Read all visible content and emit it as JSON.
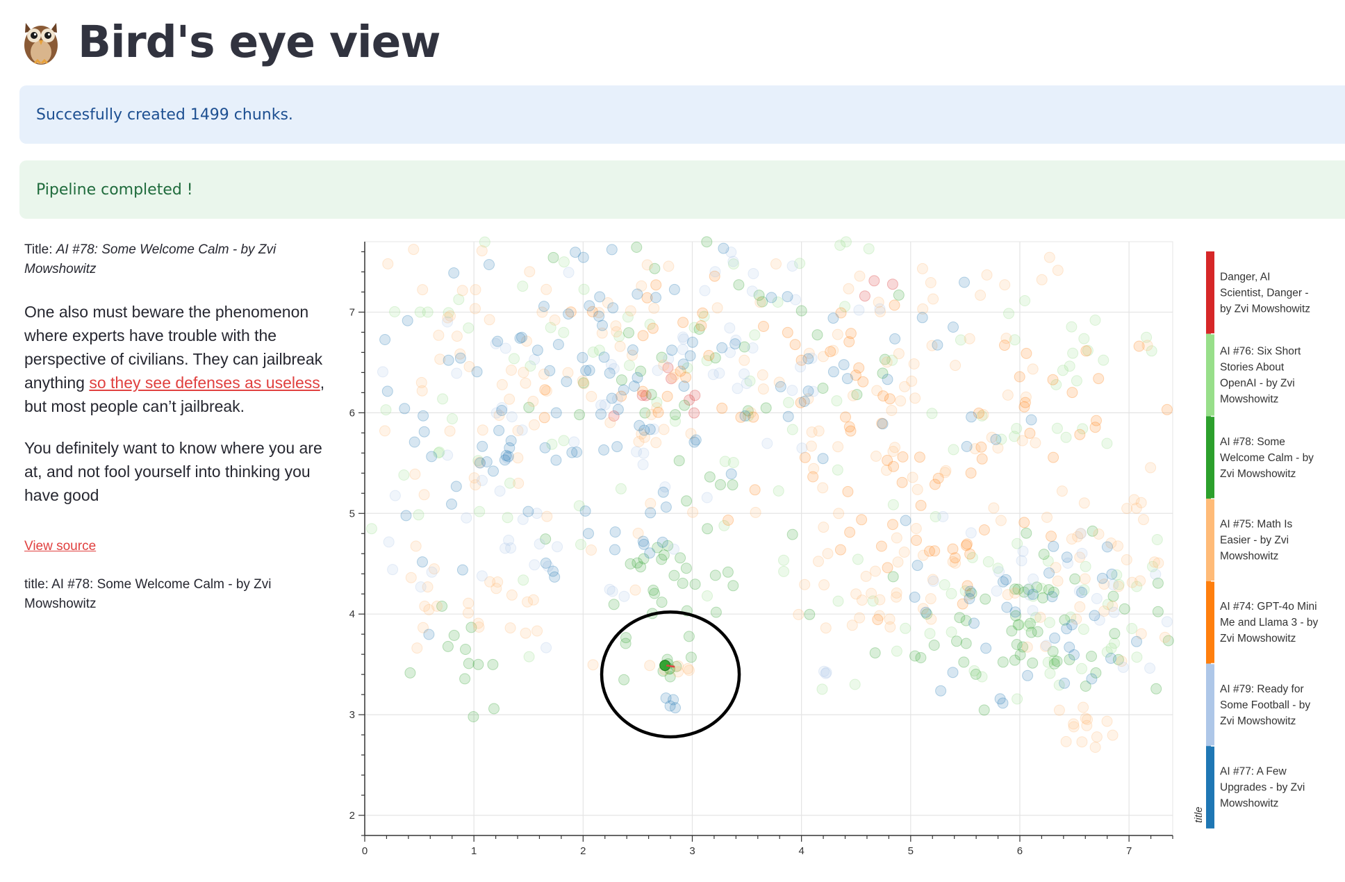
{
  "header": {
    "emoji_icon": "owl-icon",
    "title": "Bird's eye view"
  },
  "alerts": {
    "info": "Succesfully created 1499 chunks.",
    "success": "Pipeline completed !"
  },
  "selection": {
    "title_label": "Title:",
    "title_value": "AI #78: Some Welcome Calm - by Zvi Mowshowitz",
    "excerpt_p1_before": "One also must beware the phenomenon where experts have trouble with the perspective of civilians. They can jailbreak anything ",
    "excerpt_p1_link": "so they see defenses as useless",
    "excerpt_p1_after": ", but most people can’t jailbreak.",
    "excerpt_p2": "You definitely want to know where you are at, and not fool yourself into thinking you have good",
    "view_source": "View source",
    "meta_title": "title: AI #78: Some Welcome Calm - by Zvi Mowshowitz"
  },
  "chart_data": {
    "type": "scatter",
    "xlim": [
      0,
      7.4
    ],
    "ylim": [
      1.8,
      7.7
    ],
    "x_ticks": [
      "0",
      "1",
      "2",
      "3",
      "4",
      "5",
      "6",
      "7"
    ],
    "y_ticks": [
      "2",
      "3",
      "4",
      "5",
      "6",
      "7"
    ],
    "grid": true,
    "legend_title": "title",
    "legend_position": "right",
    "legend": [
      {
        "label": "Danger, AI Scientist, Danger - by Zvi Mowshowitz",
        "color": "#d62728"
      },
      {
        "label": "AI #76: Six Short Stories About OpenAI - by Zvi Mowshowitz",
        "color": "#98df8a"
      },
      {
        "label": "AI #78: Some Welcome Calm - by Zvi Mowshowitz",
        "color": "#2ca02c"
      },
      {
        "label": "AI #75: Math Is Easier - by Zvi Mowshowitz",
        "color": "#ffbb78"
      },
      {
        "label": "AI #74: GPT-4o Mini Me and Llama 3 - by Zvi Mowshowitz",
        "color": "#ff7f0e"
      },
      {
        "label": "AI #79: Ready for Some Football - by Zvi Mowshowitz",
        "color": "#aec7e8"
      },
      {
        "label": "AI #77: A Few Upgrades - by Zvi Mowshowitz",
        "color": "#1f77b4"
      }
    ],
    "highlighted_point": {
      "x": 2.75,
      "y": 3.49,
      "series": "AI #78: Some Welcome Calm - by Zvi Mowshowitz"
    },
    "annotation": {
      "type": "circle",
      "center": [
        2.8,
        3.4
      ],
      "rx": 0.63,
      "ry": 0.62
    },
    "clusters": [
      {
        "series": 0,
        "x": 2.9,
        "y": 6.1,
        "sx": 0.3,
        "sy": 0.25,
        "n": 8
      },
      {
        "series": 0,
        "x": 4.7,
        "y": 7.3,
        "sx": 0.15,
        "sy": 0.1,
        "n": 3
      },
      {
        "series": 1,
        "x": 2.0,
        "y": 6.2,
        "sx": 1.6,
        "sy": 1.0,
        "n": 80
      },
      {
        "series": 1,
        "x": 5.9,
        "y": 4.0,
        "sx": 0.9,
        "sy": 0.5,
        "n": 50
      },
      {
        "series": 1,
        "x": 6.5,
        "y": 6.5,
        "sx": 0.6,
        "sy": 0.6,
        "n": 25
      },
      {
        "series": 2,
        "x": 2.7,
        "y": 4.4,
        "sx": 0.3,
        "sy": 0.3,
        "n": 25
      },
      {
        "series": 2,
        "x": 6.1,
        "y": 3.9,
        "sx": 0.7,
        "sy": 0.4,
        "n": 60
      },
      {
        "series": 2,
        "x": 3.3,
        "y": 6.4,
        "sx": 0.9,
        "sy": 0.9,
        "n": 45
      },
      {
        "series": 2,
        "x": 0.9,
        "y": 3.5,
        "sx": 0.3,
        "sy": 0.3,
        "n": 12
      },
      {
        "series": 3,
        "x": 1.5,
        "y": 6.3,
        "sx": 1.1,
        "sy": 0.9,
        "n": 90
      },
      {
        "series": 3,
        "x": 5.0,
        "y": 6.0,
        "sx": 0.9,
        "sy": 1.0,
        "n": 90
      },
      {
        "series": 3,
        "x": 6.9,
        "y": 4.5,
        "sx": 0.5,
        "sy": 0.4,
        "n": 40
      },
      {
        "series": 3,
        "x": 0.9,
        "y": 4.0,
        "sx": 0.5,
        "sy": 0.3,
        "n": 25
      },
      {
        "series": 3,
        "x": 6.6,
        "y": 2.9,
        "sx": 0.15,
        "sy": 0.1,
        "n": 12
      },
      {
        "series": 3,
        "x": 4.6,
        "y": 4.1,
        "sx": 0.4,
        "sy": 0.2,
        "n": 20
      },
      {
        "series": 4,
        "x": 2.9,
        "y": 6.2,
        "sx": 0.6,
        "sy": 0.7,
        "n": 25
      },
      {
        "series": 4,
        "x": 4.6,
        "y": 6.0,
        "sx": 0.6,
        "sy": 0.8,
        "n": 30
      },
      {
        "series": 4,
        "x": 6.4,
        "y": 6.2,
        "sx": 0.6,
        "sy": 0.5,
        "n": 20
      },
      {
        "series": 4,
        "x": 5.3,
        "y": 4.6,
        "sx": 0.5,
        "sy": 0.4,
        "n": 20
      },
      {
        "series": 5,
        "x": 1.3,
        "y": 5.6,
        "sx": 1.0,
        "sy": 1.0,
        "n": 60
      },
      {
        "series": 5,
        "x": 3.3,
        "y": 6.8,
        "sx": 0.6,
        "sy": 0.6,
        "n": 30
      },
      {
        "series": 5,
        "x": 6.3,
        "y": 4.2,
        "sx": 0.6,
        "sy": 0.4,
        "n": 25
      },
      {
        "series": 6,
        "x": 1.0,
        "y": 5.8,
        "sx": 0.9,
        "sy": 0.9,
        "n": 70
      },
      {
        "series": 6,
        "x": 2.6,
        "y": 6.3,
        "sx": 0.7,
        "sy": 0.8,
        "n": 40
      },
      {
        "series": 6,
        "x": 4.6,
        "y": 6.5,
        "sx": 0.7,
        "sy": 0.6,
        "n": 25
      },
      {
        "series": 6,
        "x": 6.2,
        "y": 4.0,
        "sx": 0.6,
        "sy": 0.4,
        "n": 35
      },
      {
        "series": 6,
        "x": 2.6,
        "y": 4.7,
        "sx": 0.08,
        "sy": 0.05,
        "n": 4
      },
      {
        "series": 6,
        "x": 2.78,
        "y": 3.1,
        "sx": 0.03,
        "sy": 0.03,
        "n": 4
      },
      {
        "series": 2,
        "x": 2.78,
        "y": 3.45,
        "sx": 0.08,
        "sy": 0.1,
        "n": 8
      },
      {
        "series": 3,
        "x": 2.85,
        "y": 3.45,
        "sx": 0.08,
        "sy": 0.1,
        "n": 5
      },
      {
        "series": 5,
        "x": 4.2,
        "y": 3.4,
        "sx": 0.05,
        "sy": 0.02,
        "n": 3
      }
    ]
  }
}
